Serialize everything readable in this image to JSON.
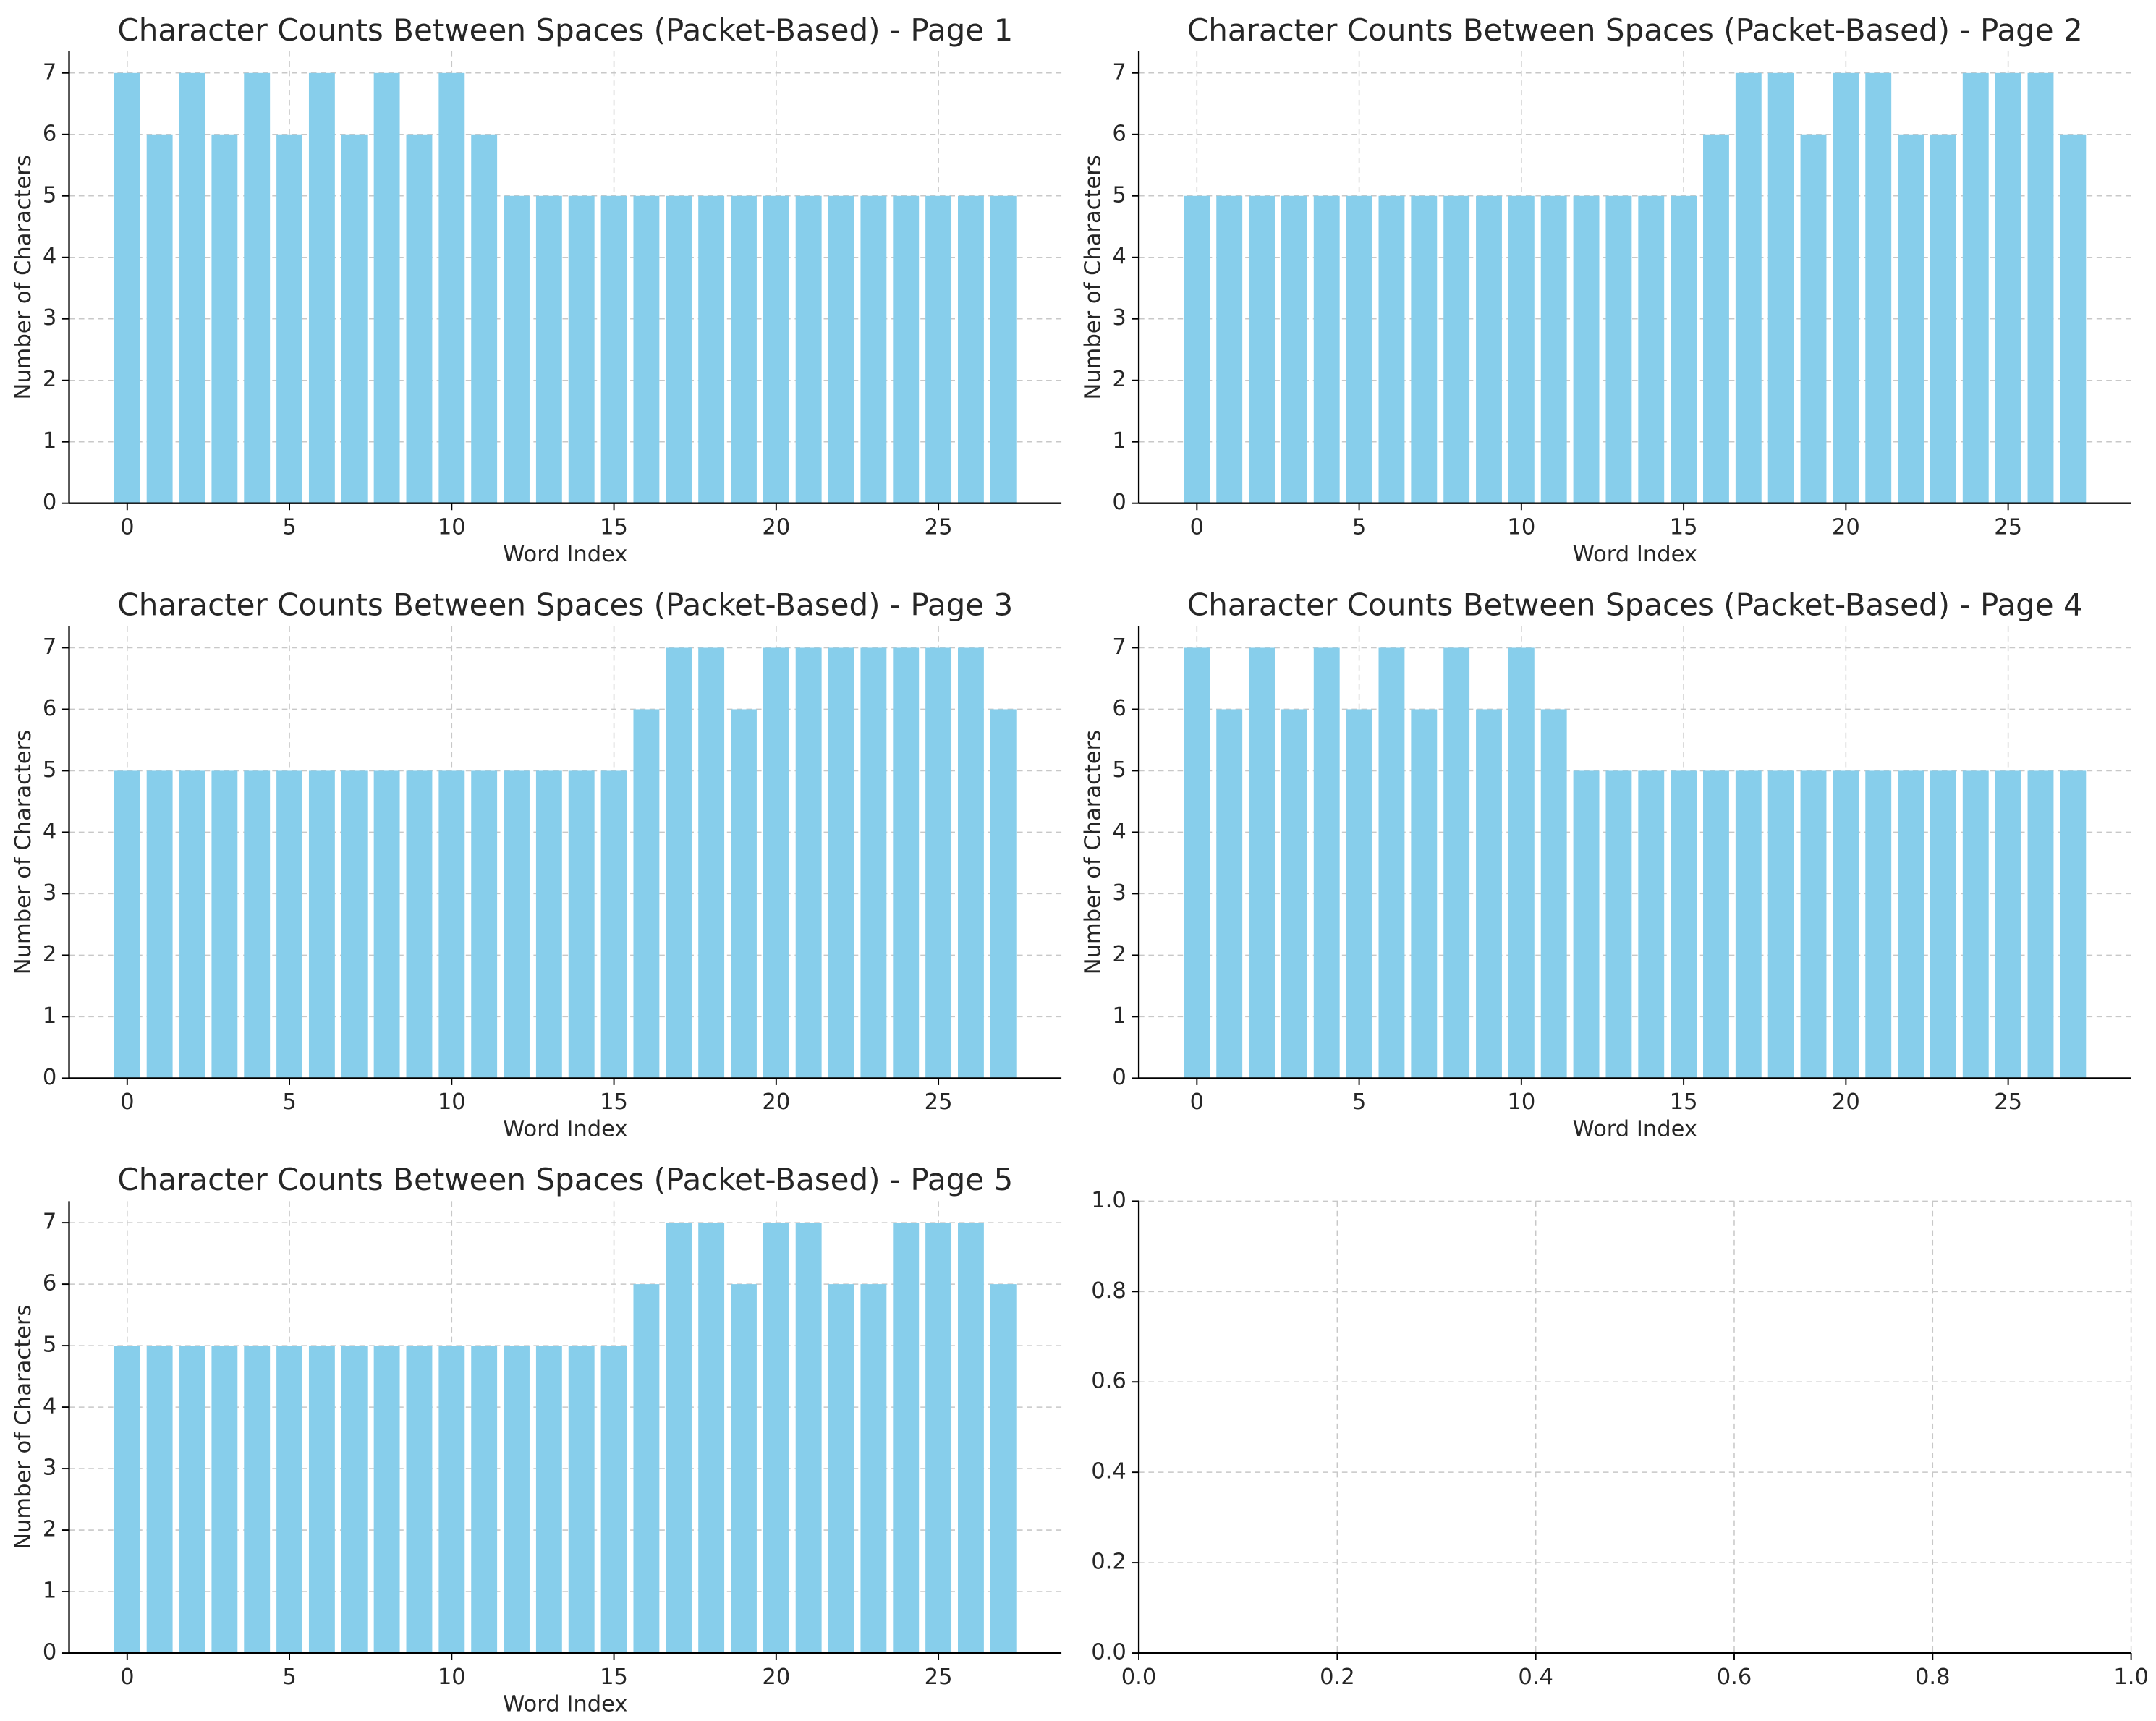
{
  "chart_data": [
    {
      "type": "bar",
      "title": "Character Counts Between Spaces (Packet-Based) - Page 1",
      "xlabel": "Word Index",
      "ylabel": "Number of Characters",
      "color": "#87ceeb",
      "x": [
        0,
        1,
        2,
        3,
        4,
        5,
        6,
        7,
        8,
        9,
        10,
        11,
        12,
        13,
        14,
        15,
        16,
        17,
        18,
        19,
        20,
        21,
        22,
        23,
        24,
        25,
        26,
        27
      ],
      "values": [
        7,
        6,
        7,
        6,
        7,
        6,
        7,
        6,
        7,
        6,
        7,
        6,
        5,
        5,
        5,
        5,
        5,
        5,
        5,
        5,
        5,
        5,
        5,
        5,
        5,
        5,
        5,
        5
      ],
      "xlim": [
        -1.79,
        28.79
      ],
      "ylim": [
        0,
        7.35
      ],
      "xticks": [
        0,
        5,
        10,
        15,
        20,
        25
      ],
      "yticks": [
        0,
        1,
        2,
        3,
        4,
        5,
        6,
        7
      ],
      "grid": true
    },
    {
      "type": "bar",
      "title": "Character Counts Between Spaces (Packet-Based) - Page 2",
      "xlabel": "Word Index",
      "ylabel": "Number of Characters",
      "color": "#87ceeb",
      "x": [
        0,
        1,
        2,
        3,
        4,
        5,
        6,
        7,
        8,
        9,
        10,
        11,
        12,
        13,
        14,
        15,
        16,
        17,
        18,
        19,
        20,
        21,
        22,
        23,
        24,
        25,
        26,
        27
      ],
      "values": [
        5,
        5,
        5,
        5,
        5,
        5,
        5,
        5,
        5,
        5,
        5,
        5,
        5,
        5,
        5,
        5,
        6,
        7,
        7,
        6,
        7,
        7,
        6,
        6,
        7,
        7,
        7,
        6
      ],
      "xlim": [
        -1.79,
        28.79
      ],
      "ylim": [
        0,
        7.35
      ],
      "xticks": [
        0,
        5,
        10,
        15,
        20,
        25
      ],
      "yticks": [
        0,
        1,
        2,
        3,
        4,
        5,
        6,
        7
      ],
      "grid": true
    },
    {
      "type": "bar",
      "title": "Character Counts Between Spaces (Packet-Based) - Page 3",
      "xlabel": "Word Index",
      "ylabel": "Number of Characters",
      "color": "#87ceeb",
      "x": [
        0,
        1,
        2,
        3,
        4,
        5,
        6,
        7,
        8,
        9,
        10,
        11,
        12,
        13,
        14,
        15,
        16,
        17,
        18,
        19,
        20,
        21,
        22,
        23,
        24,
        25,
        26,
        27
      ],
      "values": [
        5,
        5,
        5,
        5,
        5,
        5,
        5,
        5,
        5,
        5,
        5,
        5,
        5,
        5,
        5,
        5,
        6,
        7,
        7,
        6,
        7,
        7,
        7,
        7,
        7,
        7,
        7,
        6
      ],
      "xlim": [
        -1.79,
        28.79
      ],
      "ylim": [
        0,
        7.35
      ],
      "xticks": [
        0,
        5,
        10,
        15,
        20,
        25
      ],
      "yticks": [
        0,
        1,
        2,
        3,
        4,
        5,
        6,
        7
      ],
      "grid": true
    },
    {
      "type": "bar",
      "title": "Character Counts Between Spaces (Packet-Based) - Page 4",
      "xlabel": "Word Index",
      "ylabel": "Number of Characters",
      "color": "#87ceeb",
      "x": [
        0,
        1,
        2,
        3,
        4,
        5,
        6,
        7,
        8,
        9,
        10,
        11,
        12,
        13,
        14,
        15,
        16,
        17,
        18,
        19,
        20,
        21,
        22,
        23,
        24,
        25,
        26,
        27
      ],
      "values": [
        7,
        6,
        7,
        6,
        7,
        6,
        7,
        6,
        7,
        6,
        7,
        6,
        5,
        5,
        5,
        5,
        5,
        5,
        5,
        5,
        5,
        5,
        5,
        5,
        5,
        5,
        5,
        5
      ],
      "xlim": [
        -1.79,
        28.79
      ],
      "ylim": [
        0,
        7.35
      ],
      "xticks": [
        0,
        5,
        10,
        15,
        20,
        25
      ],
      "yticks": [
        0,
        1,
        2,
        3,
        4,
        5,
        6,
        7
      ],
      "grid": true
    },
    {
      "type": "bar",
      "title": "Character Counts Between Spaces (Packet-Based) - Page 5",
      "xlabel": "Word Index",
      "ylabel": "Number of Characters",
      "color": "#87ceeb",
      "x": [
        0,
        1,
        2,
        3,
        4,
        5,
        6,
        7,
        8,
        9,
        10,
        11,
        12,
        13,
        14,
        15,
        16,
        17,
        18,
        19,
        20,
        21,
        22,
        23,
        24,
        25,
        26,
        27
      ],
      "values": [
        5,
        5,
        5,
        5,
        5,
        5,
        5,
        5,
        5,
        5,
        5,
        5,
        5,
        5,
        5,
        5,
        6,
        7,
        7,
        6,
        7,
        7,
        6,
        6,
        7,
        7,
        7,
        6
      ],
      "xlim": [
        -1.79,
        28.79
      ],
      "ylim": [
        0,
        7.35
      ],
      "xticks": [
        0,
        5,
        10,
        15,
        20,
        25
      ],
      "yticks": [
        0,
        1,
        2,
        3,
        4,
        5,
        6,
        7
      ],
      "grid": true
    },
    {
      "type": "blank",
      "xlim": [
        0,
        1
      ],
      "ylim": [
        0,
        1
      ],
      "xticks": [
        {
          "value": 0,
          "label": "0.0"
        },
        {
          "value": 0.2,
          "label": "0.2"
        },
        {
          "value": 0.4,
          "label": "0.4"
        },
        {
          "value": 0.6,
          "label": "0.6"
        },
        {
          "value": 0.8,
          "label": "0.8"
        },
        {
          "value": 1,
          "label": "1.0"
        }
      ],
      "yticks": [
        {
          "value": 0,
          "label": "0.0"
        },
        {
          "value": 0.2,
          "label": "0.2"
        },
        {
          "value": 0.4,
          "label": "0.4"
        },
        {
          "value": 0.6,
          "label": "0.6"
        },
        {
          "value": 0.8,
          "label": "0.8"
        },
        {
          "value": 1,
          "label": "1.0"
        }
      ],
      "grid": true
    }
  ]
}
